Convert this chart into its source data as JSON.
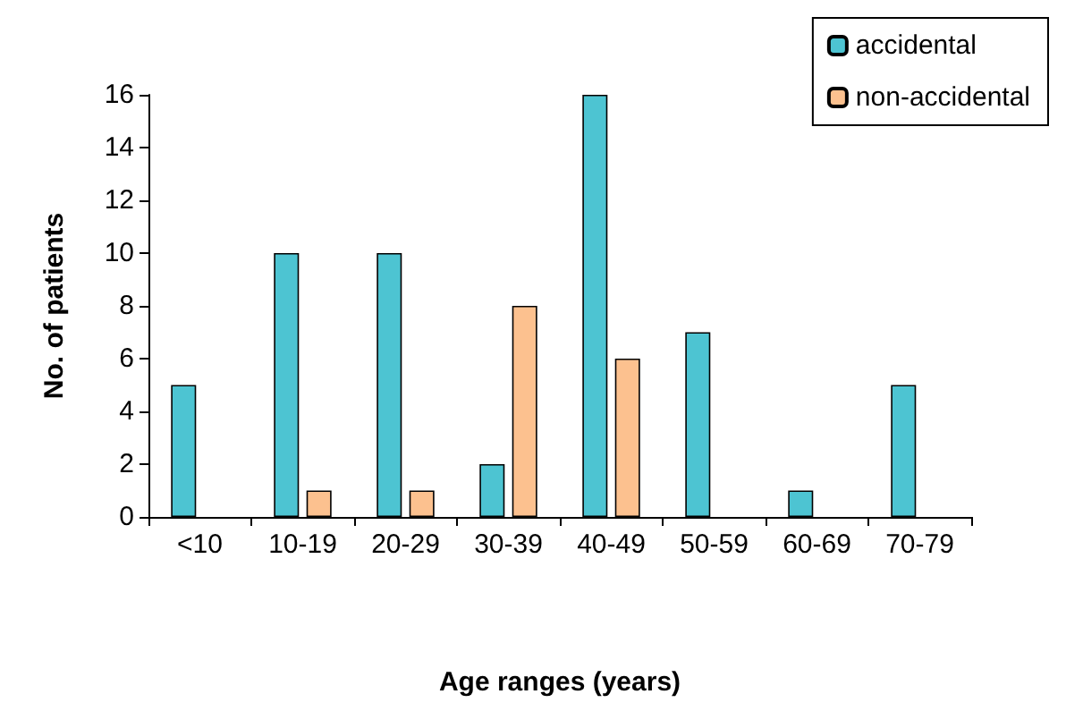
{
  "chart_data": {
    "type": "bar",
    "xlabel": "Age ranges (years)",
    "ylabel": "No. of patients",
    "categories": [
      "<10",
      "10-19",
      "20-29",
      "30-39",
      "40-49",
      "50-59",
      "60-69",
      "70-79"
    ],
    "series": [
      {
        "name": "accidental",
        "color": "#4dc4d2",
        "values": [
          5,
          10,
          10,
          2,
          16,
          7,
          1,
          5
        ]
      },
      {
        "name": "non-accidental",
        "color": "#fcc18f",
        "values": [
          0,
          1,
          1,
          8,
          6,
          0,
          0,
          0
        ]
      }
    ],
    "ylim": [
      0,
      16
    ],
    "yticks": [
      0,
      2,
      4,
      6,
      8,
      10,
      12,
      14,
      16
    ],
    "grid": false,
    "legend": "top right"
  }
}
